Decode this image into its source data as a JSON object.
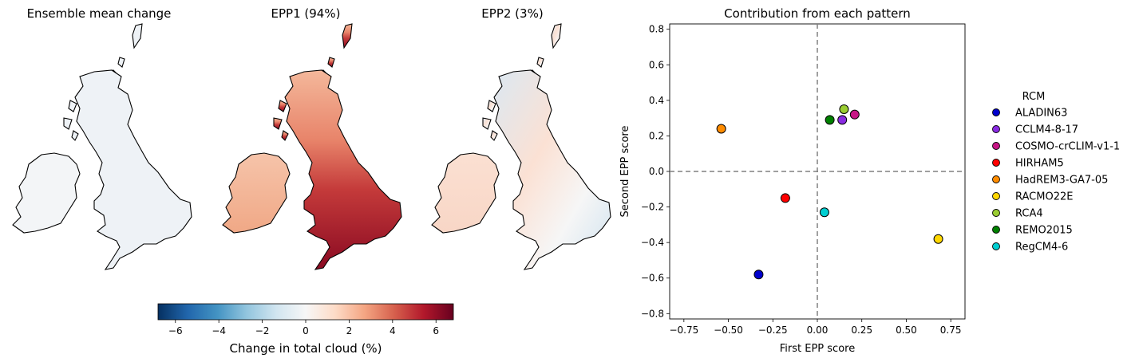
{
  "maps": [
    {
      "title": "Ensemble mean change",
      "style": "neutral"
    },
    {
      "title": "EPP1 (94%)",
      "style": "strong"
    },
    {
      "title": "EPP2 (3%)",
      "style": "mixed"
    }
  ],
  "colorbar": {
    "label": "Change in total cloud (%)",
    "range": [
      -6.8,
      6.8
    ],
    "ticks": [
      "−6",
      "−4",
      "−2",
      "0",
      "2",
      "4",
      "6"
    ],
    "tick_values": [
      -6,
      -4,
      -2,
      0,
      2,
      4,
      6
    ],
    "colormap": "RdBu_r"
  },
  "chart_data": {
    "type": "scatter",
    "title": "Contribution from each pattern",
    "xlabel": "First EPP score",
    "ylabel": "Second EPP score",
    "xlim": [
      -0.83,
      0.83
    ],
    "ylim": [
      -0.83,
      0.83
    ],
    "xticks": [
      -0.75,
      -0.5,
      -0.25,
      0.0,
      0.25,
      0.5,
      0.75
    ],
    "xtick_labels": [
      "−0.75",
      "−0.50",
      "−0.25",
      "0.00",
      "0.25",
      "0.50",
      "0.75"
    ],
    "yticks": [
      -0.8,
      -0.6,
      -0.4,
      -0.2,
      0.0,
      0.2,
      0.4,
      0.6,
      0.8
    ],
    "ytick_labels": [
      "−0.8",
      "−0.6",
      "−0.4",
      "−0.2",
      "0.0",
      "0.2",
      "0.4",
      "0.6",
      "0.8"
    ],
    "reference_lines": {
      "x": 0,
      "y": 0,
      "style": "dashed",
      "color": "#808080"
    },
    "grid": false,
    "legend": {
      "title": "RCM",
      "placement": "outside-right"
    },
    "series": [
      {
        "name": "ALADIN63",
        "color": "#0000cd",
        "x": -0.33,
        "y": -0.58
      },
      {
        "name": "CCLM4-8-17",
        "color": "#8a2be2",
        "x": 0.14,
        "y": 0.29
      },
      {
        "name": "COSMO-crCLIM-v1-1",
        "color": "#c71585",
        "x": 0.21,
        "y": 0.32
      },
      {
        "name": "HIRHAM5",
        "color": "#ff0000",
        "x": -0.18,
        "y": -0.15
      },
      {
        "name": "HadREM3-GA7-05",
        "color": "#ff8c00",
        "x": -0.54,
        "y": 0.24
      },
      {
        "name": "RACMO22E",
        "color": "#ffd700",
        "x": 0.68,
        "y": -0.38
      },
      {
        "name": "RCA4",
        "color": "#9acd32",
        "x": 0.15,
        "y": 0.35
      },
      {
        "name": "REMO2015",
        "color": "#008000",
        "x": 0.07,
        "y": 0.29
      },
      {
        "name": "RegCM4-6",
        "color": "#00ced1",
        "x": 0.04,
        "y": -0.23
      }
    ]
  }
}
